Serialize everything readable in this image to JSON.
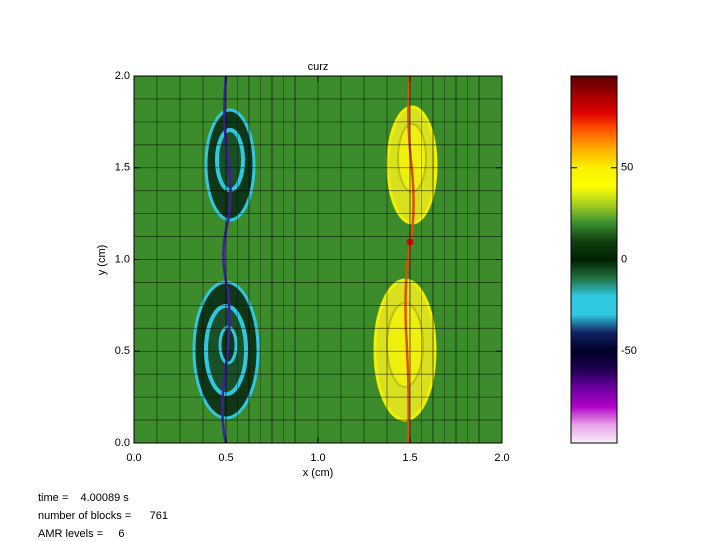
{
  "chart_data": {
    "type": "heatmap",
    "title": "curz",
    "xlabel": "x (cm)",
    "ylabel": "y (cm)",
    "xlim": [
      0,
      2
    ],
    "ylim": [
      0,
      2
    ],
    "xticks": [
      {
        "value": 0,
        "label": "0.0"
      },
      {
        "value": 0.5,
        "label": "0.5"
      },
      {
        "value": 1,
        "label": "1.0"
      },
      {
        "value": 1.5,
        "label": "1.5"
      },
      {
        "value": 2,
        "label": "2.0"
      }
    ],
    "yticks": [
      {
        "value": 0,
        "label": "0.0"
      },
      {
        "value": 0.5,
        "label": "0.5"
      },
      {
        "value": 1,
        "label": "1.0"
      },
      {
        "value": 1.5,
        "label": "1.5"
      },
      {
        "value": 2,
        "label": "2.0"
      }
    ],
    "colorbar": {
      "lim": [
        -100,
        100
      ],
      "ticks": [
        -50,
        0,
        50
      ],
      "colormap": [
        "#f8f0f8",
        "#e8a0e8",
        "#b000c8",
        "#6a00a0",
        "#200050",
        "#000028",
        "#102060",
        "#30c8e0",
        "#30c8e0",
        "#207040",
        "#002000",
        "#104010",
        "#3a9030",
        "#a8d020",
        "#ffff00",
        "#f8f000",
        "#ffb000",
        "#ff5a00",
        "#e00000",
        "#a00000",
        "#5a0000"
      ]
    },
    "info": [
      "time =    4.00089 s",
      "number of blocks =      761",
      "AMR levels =     6"
    ]
  }
}
